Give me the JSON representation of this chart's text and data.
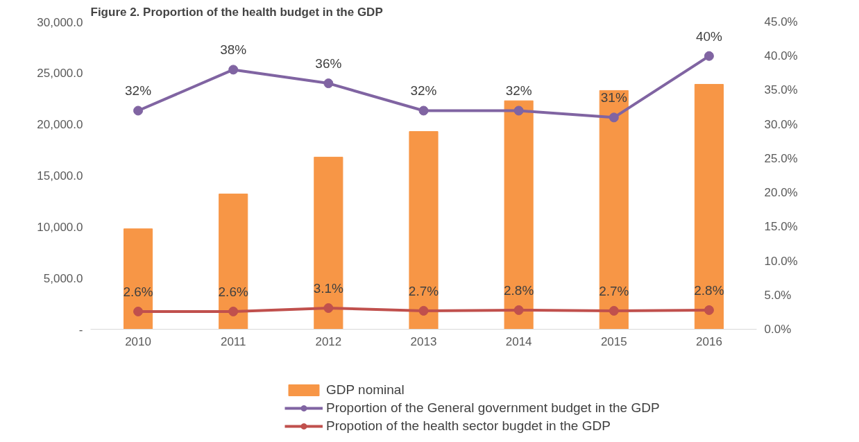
{
  "chart_data": {
    "type": "bar",
    "title": "Figure 2. Proportion of the health budget in the GDP",
    "categories": [
      "2010",
      "2011",
      "2012",
      "2013",
      "2014",
      "2015",
      "2016"
    ],
    "series": [
      {
        "name": "GDP nominal",
        "type": "bar",
        "color": "#f79646",
        "values": [
          9800,
          13200,
          16800,
          19300,
          22300,
          23300,
          23900
        ]
      },
      {
        "name": "Proportion of the General government budget in the GDP",
        "type": "line",
        "axis": "y2",
        "color": "#8064a2",
        "marker": "circle",
        "values": [
          32,
          38,
          36,
          32,
          32,
          31,
          40
        ],
        "value_labels": [
          "32%",
          "38%",
          "36%",
          "32%",
          "32%",
          "31%",
          "40%"
        ]
      },
      {
        "name": "Propotion of the health sector bugdet in the GDP",
        "type": "line",
        "axis": "y2",
        "color": "#c0504d",
        "marker": "circle",
        "values": [
          2.6,
          2.6,
          3.1,
          2.7,
          2.8,
          2.7,
          2.8
        ],
        "value_labels": [
          "2.6%",
          "2.6%",
          "3.1%",
          "2.7%",
          "2.8%",
          "2.7%",
          "2.8%"
        ]
      }
    ],
    "ylim": [
      0,
      30000
    ],
    "yticks": [
      {
        "value": 0,
        "label": "-"
      },
      {
        "value": 5000,
        "label": "5,000.0"
      },
      {
        "value": 10000,
        "label": "10,000.0"
      },
      {
        "value": 15000,
        "label": "15,000.0"
      },
      {
        "value": 20000,
        "label": "20,000.0"
      },
      {
        "value": 25000,
        "label": "25,000.0"
      },
      {
        "value": 30000,
        "label": "30,000.0"
      }
    ],
    "y2lim": [
      0,
      45
    ],
    "y2ticks": [
      {
        "value": 0,
        "label": "0.0%"
      },
      {
        "value": 5,
        "label": "5.0%"
      },
      {
        "value": 10,
        "label": "10.0%"
      },
      {
        "value": 15,
        "label": "15.0%"
      },
      {
        "value": 20,
        "label": "20.0%"
      },
      {
        "value": 25,
        "label": "25.0%"
      },
      {
        "value": 30,
        "label": "30.0%"
      },
      {
        "value": 35,
        "label": "35.0%"
      },
      {
        "value": 40,
        "label": "40.0%"
      },
      {
        "value": 45,
        "label": "45.0%"
      }
    ],
    "grid": false,
    "legend": "bottom"
  }
}
